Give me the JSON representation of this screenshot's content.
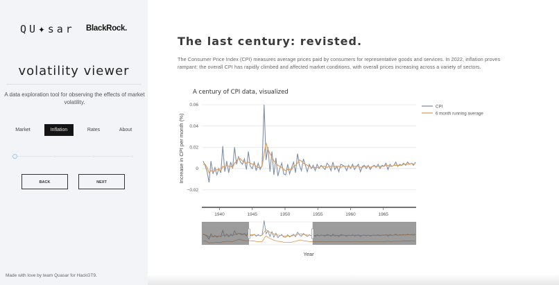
{
  "sidebar": {
    "logos": {
      "quasar": "QU",
      "quasar_star": "✦",
      "quasar_tail": "SAR",
      "blackrock": "BlackRock."
    },
    "app_title": "volatility viewer",
    "app_description": "A data exploration tool for observing the effects of market volatility.",
    "tabs": [
      {
        "label": "Market",
        "active": false
      },
      {
        "label": "Inflation",
        "active": true
      },
      {
        "label": "Rates",
        "active": false
      },
      {
        "label": "About",
        "active": false
      }
    ],
    "stepper": {
      "steps": 4,
      "current": 0
    },
    "buttons": {
      "back": "BACK",
      "next": "NEXT"
    },
    "footer": "Made with love by team Quasar for HackGT9."
  },
  "main": {
    "title": "The last century: revisted.",
    "description": "The Consumer Price Index (CPI) measures average prices paid by consumers for representative goods and services. In 2022, inflation proves rampant: the overall CPI has rapidly climbed and affected market conditions, with overall prices increasing across a variety of sectors."
  },
  "colors": {
    "cpi": "#7d8ea8",
    "running_avg": "#e0a060",
    "active_tab_bg": "#141414",
    "sidebar_bg": "#f3f4f8",
    "stepper_current": "#9dc8ea"
  },
  "chart_data": {
    "type": "line",
    "title": "A century of CPI data, visualized",
    "xlabel": "Year",
    "ylabel": "Increase in CPI per month (%)",
    "xlim": [
      1937.3,
      1970
    ],
    "ylim": [
      -0.025,
      0.062
    ],
    "x_ticks": [
      1940,
      1945,
      1950,
      1955,
      1960,
      1965
    ],
    "y_ticks": [
      -0.02,
      0,
      0.02,
      0.04,
      0.06
    ],
    "y_tick_labels": [
      "−0.02",
      "0",
      "0.02",
      "0.04",
      "0.06"
    ],
    "legend": [
      "CPI",
      "6 month running average"
    ],
    "legend_position": "right-top",
    "grid": true,
    "range_slider": {
      "visible": true,
      "selected_range": [
        1944.5,
        1954.2
      ],
      "full_range": [
        1937.3,
        1970
      ]
    },
    "x": [
      1937.5,
      1937.8,
      1938.1,
      1938.4,
      1938.7,
      1939.0,
      1939.3,
      1939.6,
      1939.9,
      1940.2,
      1940.5,
      1940.8,
      1941.1,
      1941.4,
      1941.7,
      1942.0,
      1942.3,
      1942.6,
      1942.9,
      1943.2,
      1943.5,
      1943.8,
      1944.1,
      1944.4,
      1944.7,
      1945.0,
      1945.3,
      1945.6,
      1945.9,
      1946.2,
      1946.5,
      1946.8,
      1947.1,
      1947.4,
      1947.7,
      1948.0,
      1948.3,
      1948.6,
      1948.9,
      1949.2,
      1949.5,
      1949.8,
      1950.1,
      1950.4,
      1950.7,
      1951.0,
      1951.3,
      1951.6,
      1951.9,
      1952.2,
      1952.5,
      1952.8,
      1953.1,
      1953.4,
      1953.7,
      1954.0,
      1954.3,
      1954.6,
      1954.9,
      1955.2,
      1955.5,
      1955.8,
      1956.1,
      1956.4,
      1956.7,
      1957.0,
      1957.3,
      1957.6,
      1957.9,
      1958.2,
      1958.5,
      1958.8,
      1959.1,
      1959.4,
      1959.7,
      1960.0,
      1960.3,
      1960.6,
      1960.9,
      1961.2,
      1961.5,
      1961.8,
      1962.1,
      1962.4,
      1962.7,
      1963.0,
      1963.3,
      1963.6,
      1963.9,
      1964.2,
      1964.5,
      1964.8,
      1965.1,
      1965.4,
      1965.7,
      1966.0,
      1966.3,
      1966.6,
      1966.9,
      1967.2,
      1967.5,
      1967.8,
      1968.1,
      1968.4,
      1968.7,
      1969.0,
      1969.3,
      1969.6,
      1969.9
    ],
    "series": [
      {
        "name": "CPI",
        "values": [
          0.007,
          0.003,
          -0.003,
          -0.013,
          0.007,
          -0.005,
          0.001,
          -0.006,
          0.0,
          -0.004,
          0.021,
          -0.003,
          0.007,
          -0.004,
          0.006,
          0.0,
          0.02,
          0.004,
          0.011,
          0.006,
          0.004,
          0.009,
          -0.001,
          0.016,
          0.002,
          0.0,
          0.006,
          -0.002,
          0.005,
          -0.001,
          0.003,
          0.06,
          0.008,
          0.02,
          -0.003,
          0.016,
          -0.006,
          0.01,
          -0.007,
          0.0,
          0.005,
          -0.005,
          -0.006,
          0.004,
          -0.005,
          0.001,
          0.006,
          -0.004,
          0.014,
          0.003,
          -0.002,
          0.009,
          0.003,
          -0.003,
          0.004,
          0.0,
          0.003,
          -0.002,
          0.004,
          0.0,
          0.003,
          0.001,
          -0.001,
          0.005,
          0.003,
          -0.002,
          0.006,
          -0.001,
          0.002,
          -0.003,
          0.004,
          0.003,
          0.002,
          -0.002,
          0.003,
          0.0,
          0.004,
          -0.001,
          0.002,
          0.004,
          -0.003,
          0.002,
          0.003,
          0.0,
          0.003,
          -0.001,
          0.002,
          0.003,
          0.001,
          0.004,
          0.0,
          0.003,
          0.002,
          0.005,
          -0.001,
          0.004,
          0.002,
          0.003,
          0.006,
          0.002,
          0.004,
          0.003,
          0.005,
          0.003,
          0.006,
          0.004,
          0.005,
          0.003,
          0.006
        ]
      },
      {
        "name": "6 month running average",
        "values": [
          0.004,
          0.004,
          0.001,
          -0.004,
          -0.002,
          -0.003,
          -0.002,
          -0.001,
          -0.001,
          -0.002,
          0.002,
          0.001,
          0.003,
          0.002,
          0.002,
          0.001,
          0.005,
          0.007,
          0.01,
          0.009,
          0.007,
          0.006,
          0.005,
          0.006,
          0.005,
          0.004,
          0.004,
          0.002,
          0.001,
          0.001,
          0.002,
          0.014,
          0.024,
          0.018,
          0.014,
          0.011,
          0.007,
          0.005,
          0.003,
          0.002,
          0.001,
          -0.001,
          -0.002,
          -0.001,
          -0.001,
          -0.001,
          0.002,
          0.003,
          0.005,
          0.008,
          0.007,
          0.005,
          0.004,
          0.003,
          0.002,
          0.001,
          0.001,
          0.001,
          0.001,
          0.001,
          0.002,
          0.002,
          0.002,
          0.001,
          0.002,
          0.002,
          0.002,
          0.002,
          0.002,
          0.002,
          0.001,
          0.002,
          0.002,
          0.002,
          0.002,
          0.001,
          0.002,
          0.002,
          0.002,
          0.002,
          0.001,
          0.001,
          0.002,
          0.002,
          0.002,
          0.001,
          0.002,
          0.002,
          0.002,
          0.002,
          0.002,
          0.002,
          0.002,
          0.003,
          0.003,
          0.002,
          0.002,
          0.003,
          0.003,
          0.003,
          0.003,
          0.003,
          0.004,
          0.004,
          0.004,
          0.004,
          0.005,
          0.004,
          0.005
        ]
      }
    ]
  }
}
